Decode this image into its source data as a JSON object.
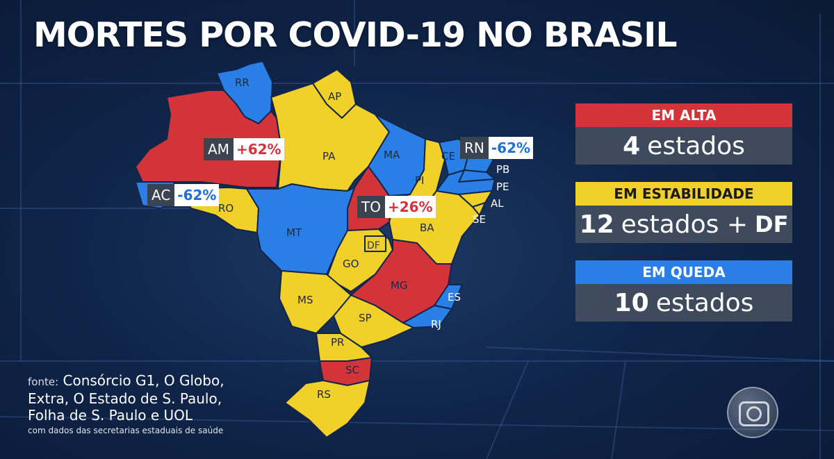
{
  "title": "MORTES POR COVID-19 NO BRASIL",
  "colors": {
    "alta": "#d2343a",
    "estabilidade": "#f2d02a",
    "queda": "#2a7fe6"
  },
  "states": {
    "RR": "RR",
    "AP": "AP",
    "PA": "PA",
    "MA": "MA",
    "CE": "CE",
    "PI": "PI",
    "PB": "PB",
    "PE": "PE",
    "AL": "AL",
    "SE": "SE",
    "BA": "BA",
    "MT": "MT",
    "DF": "DF",
    "GO": "GO",
    "MG": "MG",
    "ES": "ES",
    "RJ": "RJ",
    "MS": "MS",
    "SP": "SP",
    "PR": "PR",
    "SC": "SC",
    "RS": "RS",
    "RO": "RO"
  },
  "callouts": {
    "am": {
      "abbr": "AM",
      "pct": "+62%"
    },
    "ac": {
      "abbr": "AC",
      "pct": "-62%"
    },
    "to": {
      "abbr": "TO",
      "pct": "+26%"
    },
    "rn": {
      "abbr": "RN",
      "pct": "-62%"
    }
  },
  "legend": {
    "alta": {
      "label": "EM ALTA",
      "count": "4",
      "unit": "estados"
    },
    "estabilidade": {
      "label": "EM ESTABILIDADE",
      "count": "12",
      "unit": "estados +",
      "extra": "DF"
    },
    "queda": {
      "label": "EM QUEDA",
      "count": "10",
      "unit": "estados"
    }
  },
  "source": {
    "label": "fonte:",
    "text_1": "Consórcio G1, O Globo,",
    "text_2": "Extra, O Estado de S. Paulo,",
    "text_3": "Folha de S. Paulo e UOL",
    "note": "com dados das secretarias estaduais de saúde"
  },
  "logo_icon": "tv-globo-logo-icon"
}
